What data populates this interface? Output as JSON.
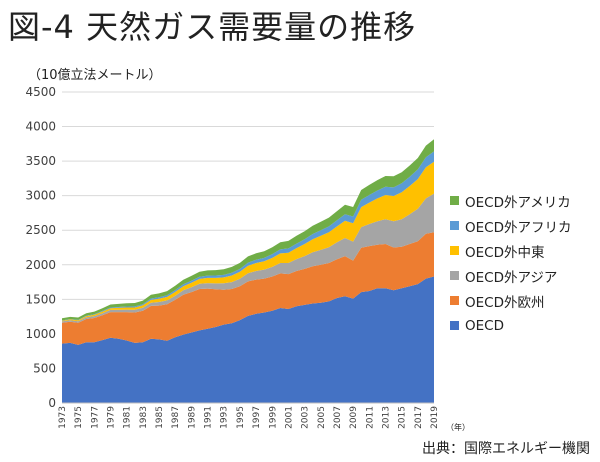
{
  "title": "図-4 天然ガス需要量の推移",
  "unit_label": "（10億立法メートル）",
  "source": "出典：国際エネルギー機関",
  "year_label": "（年）",
  "chart_data": {
    "type": "area",
    "stacked": true,
    "x": [
      1973,
      1974,
      1975,
      1976,
      1977,
      1978,
      1979,
      1980,
      1981,
      1982,
      1983,
      1984,
      1985,
      1986,
      1987,
      1988,
      1989,
      1990,
      1991,
      1992,
      1993,
      1994,
      1995,
      1996,
      1997,
      1998,
      1999,
      2000,
      2001,
      2002,
      2003,
      2004,
      2005,
      2006,
      2007,
      2008,
      2009,
      2010,
      2011,
      2012,
      2013,
      2014,
      2015,
      2016,
      2017,
      2018,
      2019
    ],
    "x_tick_labels": [
      "1973",
      "1975",
      "1977",
      "1979",
      "1981",
      "1983",
      "1985",
      "1987",
      "1989",
      "1991",
      "1993",
      "1995",
      "1997",
      "1999",
      "2001",
      "2003",
      "2005",
      "2007",
      "2009",
      "2011",
      "2013",
      "2015",
      "2017",
      "2019"
    ],
    "ylim": [
      0,
      4500
    ],
    "yticks": [
      0,
      500,
      1000,
      1500,
      2000,
      2500,
      3000,
      3500,
      4000,
      4500
    ],
    "grid": true,
    "legend_position": "right",
    "series": [
      {
        "name": "OECD",
        "color": "#4472c4",
        "values": [
          860,
          870,
          840,
          880,
          880,
          910,
          945,
          930,
          905,
          870,
          880,
          930,
          920,
          900,
          950,
          990,
          1020,
          1050,
          1075,
          1100,
          1135,
          1155,
          1200,
          1260,
          1290,
          1310,
          1335,
          1375,
          1360,
          1400,
          1420,
          1440,
          1450,
          1470,
          1520,
          1545,
          1510,
          1605,
          1620,
          1660,
          1660,
          1630,
          1660,
          1690,
          1720,
          1800,
          1830
        ]
      },
      {
        "name": "OECD外欧州",
        "color": "#ed7d31",
        "values": [
          300,
          305,
          320,
          335,
          350,
          360,
          370,
          385,
          410,
          440,
          455,
          475,
          490,
          530,
          545,
          575,
          585,
          600,
          580,
          545,
          505,
          495,
          490,
          500,
          495,
          490,
          495,
          500,
          505,
          510,
          520,
          540,
          550,
          555,
          560,
          580,
          550,
          640,
          650,
          630,
          640,
          620,
          600,
          610,
          620,
          650,
          640
        ]
      },
      {
        "name": "OECD外アジア",
        "color": "#a5a5a5",
        "values": [
          20,
          22,
          23,
          25,
          27,
          30,
          32,
          35,
          37,
          40,
          42,
          47,
          52,
          55,
          58,
          65,
          70,
          75,
          80,
          85,
          92,
          100,
          108,
          116,
          125,
          130,
          140,
          150,
          160,
          172,
          185,
          200,
          215,
          230,
          245,
          262,
          275,
          300,
          320,
          340,
          360,
          380,
          400,
          430,
          470,
          510,
          560
        ]
      },
      {
        "name": "OECD外中東",
        "color": "#ffc000",
        "values": [
          10,
          12,
          14,
          17,
          20,
          23,
          25,
          27,
          30,
          32,
          36,
          40,
          45,
          50,
          55,
          60,
          65,
          70,
          75,
          80,
          85,
          95,
          100,
          110,
          115,
          120,
          130,
          140,
          150,
          160,
          175,
          190,
          205,
          215,
          230,
          250,
          265,
          290,
          310,
          330,
          350,
          365,
          390,
          410,
          430,
          450,
          460
        ]
      },
      {
        "name": "OECD外アフリカ",
        "color": "#5b9bd5",
        "values": [
          5,
          5,
          6,
          7,
          8,
          9,
          10,
          12,
          14,
          16,
          18,
          20,
          22,
          24,
          26,
          28,
          30,
          32,
          34,
          35,
          37,
          40,
          42,
          45,
          48,
          50,
          54,
          58,
          62,
          65,
          70,
          75,
          80,
          85,
          90,
          95,
          98,
          105,
          110,
          115,
          120,
          125,
          130,
          135,
          140,
          145,
          150
        ]
      },
      {
        "name": "OECD外アメリカ",
        "color": "#70ad47",
        "values": [
          30,
          32,
          34,
          36,
          38,
          40,
          43,
          45,
          47,
          49,
          51,
          54,
          57,
          60,
          63,
          66,
          69,
          72,
          75,
          78,
          81,
          84,
          87,
          90,
          93,
          96,
          100,
          104,
          108,
          112,
          116,
          120,
          124,
          128,
          132,
          136,
          138,
          142,
          146,
          150,
          155,
          160,
          160,
          162,
          165,
          170,
          175
        ]
      }
    ]
  }
}
